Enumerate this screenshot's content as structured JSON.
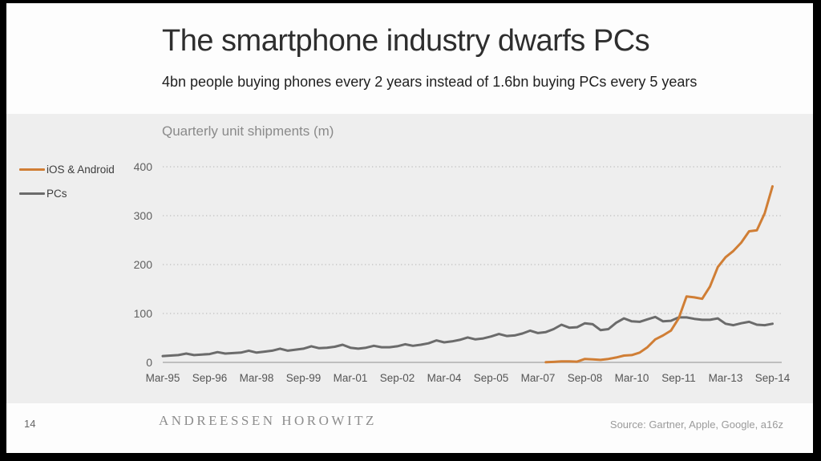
{
  "slide": {
    "title": "The smartphone industry dwarfs PCs",
    "subtitle": "4bn people buying phones every 2 years instead of 1.6bn buying PCs every 5 years",
    "page_number": "14",
    "brand": "ANDREESSEN HOROWITZ",
    "source": "Source: Gartner, Apple, Google, a16z"
  },
  "chart_data": {
    "type": "line",
    "title": "Quarterly unit shipments (m)",
    "x_start": "Mar-95",
    "x_end": "Sep-14",
    "x_interval": "quarterly",
    "x_tick_labels": [
      "Mar-95",
      "Sep-96",
      "Mar-98",
      "Sep-99",
      "Mar-01",
      "Sep-02",
      "Mar-04",
      "Sep-05",
      "Mar-07",
      "Sep-08",
      "Mar-10",
      "Sep-11",
      "Mar-13",
      "Sep-14"
    ],
    "ylim": [
      0,
      400
    ],
    "y_ticks": [
      0,
      100,
      200,
      300,
      400
    ],
    "grid": "horizontal-dotted",
    "legend_position": "left",
    "series": [
      {
        "name": "iOS & Android",
        "color": "#D07E35",
        "start_quarter": "Jun-07",
        "start_index": 49,
        "values": [
          0.3,
          1,
          2,
          2,
          1.5,
          7,
          6,
          5,
          7,
          10,
          14,
          15,
          20,
          31,
          47,
          55,
          65,
          90,
          135,
          133,
          130,
          155,
          195,
          215,
          228,
          245,
          268,
          270,
          305,
          360
        ]
      },
      {
        "name": "PCs",
        "color": "#6B6B6B",
        "start_quarter": "Mar-95",
        "start_index": 0,
        "values": [
          13,
          14,
          15,
          18,
          15,
          16,
          17,
          21,
          18,
          19,
          20,
          24,
          20,
          22,
          24,
          28,
          24,
          26,
          28,
          33,
          29,
          30,
          32,
          36,
          30,
          28,
          30,
          34,
          31,
          31,
          33,
          37,
          34,
          36,
          39,
          45,
          41,
          43,
          46,
          51,
          47,
          49,
          53,
          58,
          54,
          55,
          59,
          65,
          60,
          62,
          68,
          77,
          71,
          72,
          80,
          78,
          66,
          68,
          81,
          90,
          84,
          83,
          88,
          93,
          84,
          85,
          92,
          92,
          89,
          87,
          87,
          90,
          79,
          76,
          80,
          83,
          77,
          76,
          79
        ]
      }
    ]
  }
}
